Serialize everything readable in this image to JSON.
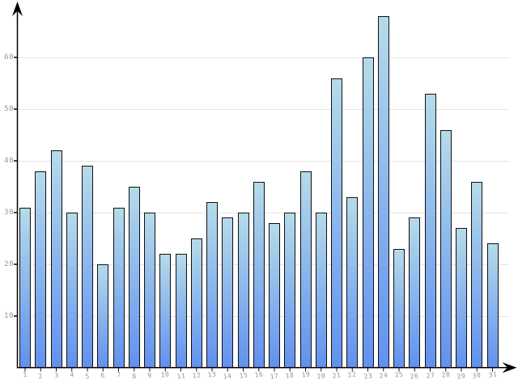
{
  "chart": {
    "background": "#ffffff",
    "grid_color": "#e4e4e4",
    "axis_color": "#000000",
    "tick_color": "#111111",
    "tick_label_color": "#949494",
    "bar_style": {
      "border_color": "#111111",
      "gradient_top": "#b5dbe9",
      "gradient_bottom": "#6191f0"
    }
  },
  "chart_data": {
    "type": "bar",
    "title": "",
    "xlabel": "",
    "ylabel": "",
    "categories": [
      "1",
      "2",
      "3",
      "4",
      "5",
      "6",
      "7",
      "8",
      "9",
      "10",
      "11",
      "12",
      "13",
      "14",
      "15",
      "16",
      "17",
      "18",
      "19",
      "20",
      "21",
      "22",
      "23",
      "24",
      "25",
      "26",
      "27",
      "28",
      "29",
      "30",
      "31"
    ],
    "values": [
      31,
      38,
      42,
      30,
      39,
      20,
      31,
      35,
      30,
      22,
      22,
      25,
      32,
      29,
      30,
      36,
      28,
      30,
      38,
      30,
      56,
      33,
      60,
      68,
      23,
      29,
      53,
      46,
      27,
      36,
      24
    ],
    "ylim": [
      0,
      70
    ],
    "yticks": [
      10,
      20,
      30,
      40,
      50,
      60
    ],
    "grid": "horizontal",
    "legend": false
  }
}
